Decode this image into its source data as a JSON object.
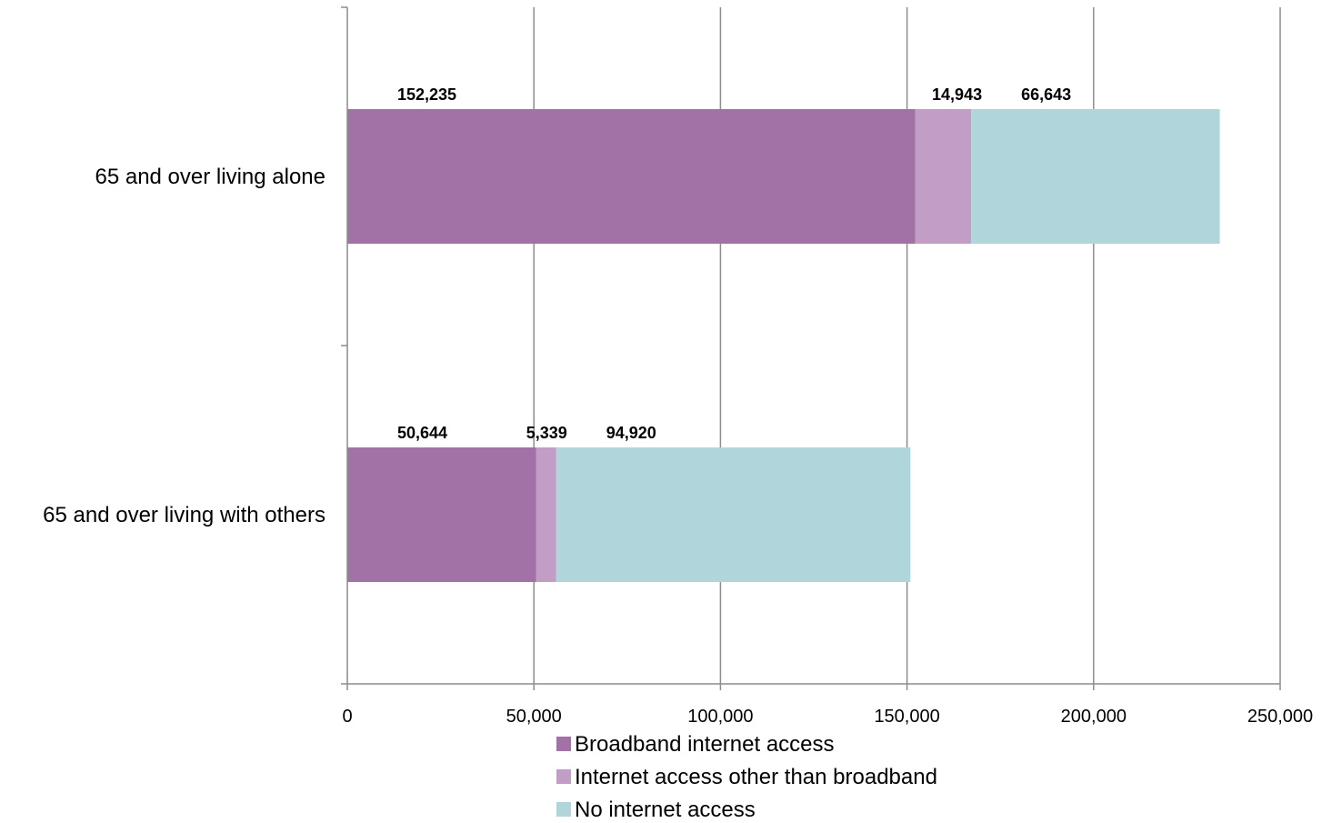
{
  "chart_data": {
    "type": "bar",
    "orientation": "horizontal",
    "stacked": true,
    "title": "",
    "xlabel": "",
    "ylabel": "",
    "xlim": [
      0,
      250000
    ],
    "x_ticks": [
      0,
      50000,
      100000,
      150000,
      200000,
      250000
    ],
    "x_tick_labels": [
      "0",
      "50,000",
      "100,000",
      "150,000",
      "200,000",
      "250,000"
    ],
    "grid": true,
    "legend_position": "bottom",
    "categories": [
      "65 and over living alone",
      "65 and over living with others"
    ],
    "series": [
      {
        "name": "Broadband internet access",
        "color": "#a271a6",
        "values": [
          152235,
          50644
        ],
        "labels": [
          "152,235",
          "50,644"
        ]
      },
      {
        "name": "Internet access other than broadband",
        "color": "#c29dc6",
        "values": [
          14943,
          5339
        ],
        "labels": [
          "14,943",
          "5,339"
        ]
      },
      {
        "name": "No internet access",
        "color": "#b0d5db",
        "values": [
          66643,
          94920
        ],
        "labels": [
          "66,643",
          "94,920"
        ]
      }
    ]
  }
}
